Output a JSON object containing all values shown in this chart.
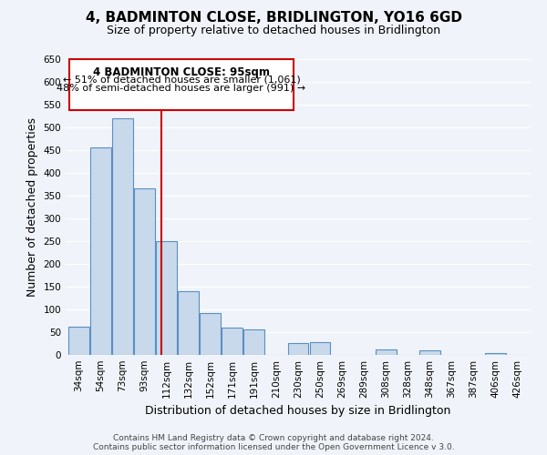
{
  "title": "4, BADMINTON CLOSE, BRIDLINGTON, YO16 6GD",
  "subtitle": "Size of property relative to detached houses in Bridlington",
  "xlabel": "Distribution of detached houses by size in Bridlington",
  "ylabel": "Number of detached properties",
  "footer_line1": "Contains HM Land Registry data © Crown copyright and database right 2024.",
  "footer_line2": "Contains public sector information licensed under the Open Government Licence v 3.0.",
  "bar_labels": [
    "34sqm",
    "54sqm",
    "73sqm",
    "93sqm",
    "112sqm",
    "132sqm",
    "152sqm",
    "171sqm",
    "191sqm",
    "210sqm",
    "230sqm",
    "250sqm",
    "269sqm",
    "289sqm",
    "308sqm",
    "328sqm",
    "348sqm",
    "367sqm",
    "387sqm",
    "406sqm",
    "426sqm"
  ],
  "bar_values": [
    62,
    456,
    521,
    367,
    250,
    141,
    93,
    61,
    57,
    0,
    27,
    28,
    0,
    0,
    12,
    0,
    10,
    0,
    0,
    4,
    0
  ],
  "bar_color": "#c9d9ec",
  "bar_edge_color": "#5a8fc3",
  "ylim": [
    0,
    650
  ],
  "yticks": [
    0,
    50,
    100,
    150,
    200,
    250,
    300,
    350,
    400,
    450,
    500,
    550,
    600,
    650
  ],
  "annotation_title": "4 BADMINTON CLOSE: 95sqm",
  "annotation_line1": "← 51% of detached houses are smaller (1,061)",
  "annotation_line2": "48% of semi-detached houses are larger (991) →",
  "annotation_box_color": "#ffffff",
  "annotation_box_edge": "#cc0000",
  "vline_x_index": 3.75,
  "vline_color": "#cc0000",
  "bg_color": "#f0f4fa",
  "grid_color": "#ffffff",
  "title_fontsize": 11,
  "subtitle_fontsize": 9,
  "axis_label_fontsize": 9,
  "tick_fontsize": 7.5,
  "footer_fontsize": 6.5
}
